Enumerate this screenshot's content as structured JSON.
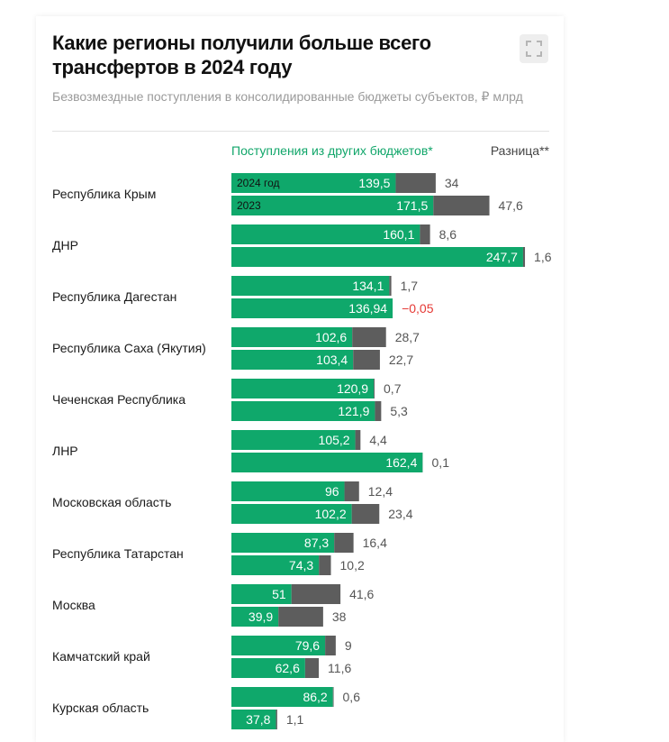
{
  "title": "Какие регионы получили больше всего трансфертов в 2024 году",
  "subtitle": "Безвозмездные поступления в консолидированные бюджеты субъектов, ₽ млрд",
  "colors": {
    "inflow": "#0fa86b",
    "diff": "#5d5d5d",
    "negative": "#e53935"
  },
  "chart_data": {
    "type": "bar",
    "orientation": "horizontal",
    "stacked": true,
    "title": "Какие регионы получили больше всего трансфертов в 2024 году",
    "subtitle": "Безвозмездные поступления в консолидированные бюджеты субъектов, ₽ млрд",
    "legend": [
      "Поступления из других бюджетов*",
      "Разница**"
    ],
    "series_names": [
      "2024 год",
      "2023"
    ],
    "categories": [
      "Республика Крым",
      "ДНР",
      "Республика Дагестан",
      "Республика Саха (Якутия)",
      "Чеченская Республика",
      "ЛНР",
      "Московская область",
      "Республика Татарстан",
      "Москва",
      "Камчатский край",
      "Курская область"
    ],
    "rows": [
      {
        "region": "Республика Крым",
        "bars": [
          {
            "year": "2024 год",
            "value": 139.5,
            "value_label": "139,5",
            "diff": 34,
            "diff_label": "34"
          },
          {
            "year": "2023",
            "value": 171.5,
            "value_label": "171,5",
            "diff": 47.6,
            "diff_label": "47,6"
          }
        ]
      },
      {
        "region": "ДНР",
        "bars": [
          {
            "year": "2024 год",
            "value": 160.1,
            "value_label": "160,1",
            "diff": 8.6,
            "diff_label": "8,6"
          },
          {
            "year": "2023",
            "value": 247.7,
            "value_label": "247,7",
            "diff": 1.6,
            "diff_label": "1,6"
          }
        ]
      },
      {
        "region": "Республика Дагестан",
        "bars": [
          {
            "year": "2024 год",
            "value": 134.1,
            "value_label": "134,1",
            "diff": 1.7,
            "diff_label": "1,7"
          },
          {
            "year": "2023",
            "value": 136.94,
            "value_label": "136,94",
            "diff": -0.05,
            "diff_label": "−0,05"
          }
        ]
      },
      {
        "region": "Республика Саха (Якутия)",
        "bars": [
          {
            "year": "2024 год",
            "value": 102.6,
            "value_label": "102,6",
            "diff": 28.7,
            "diff_label": "28,7"
          },
          {
            "year": "2023",
            "value": 103.4,
            "value_label": "103,4",
            "diff": 22.7,
            "diff_label": "22,7"
          }
        ]
      },
      {
        "region": "Чеченская Республика",
        "bars": [
          {
            "year": "2024 год",
            "value": 120.9,
            "value_label": "120,9",
            "diff": 0.7,
            "diff_label": "0,7"
          },
          {
            "year": "2023",
            "value": 121.9,
            "value_label": "121,9",
            "diff": 5.3,
            "diff_label": "5,3"
          }
        ]
      },
      {
        "region": "ЛНР",
        "bars": [
          {
            "year": "2024 год",
            "value": 105.2,
            "value_label": "105,2",
            "diff": 4.4,
            "diff_label": "4,4"
          },
          {
            "year": "2023",
            "value": 162.4,
            "value_label": "162,4",
            "diff": 0.1,
            "diff_label": "0,1"
          }
        ]
      },
      {
        "region": "Московская область",
        "bars": [
          {
            "year": "2024 год",
            "value": 96,
            "value_label": "96",
            "diff": 12.4,
            "diff_label": "12,4"
          },
          {
            "year": "2023",
            "value": 102.2,
            "value_label": "102,2",
            "diff": 23.4,
            "diff_label": "23,4"
          }
        ]
      },
      {
        "region": "Республика Татарстан",
        "bars": [
          {
            "year": "2024 год",
            "value": 87.3,
            "value_label": "87,3",
            "diff": 16.4,
            "diff_label": "16,4"
          },
          {
            "year": "2023",
            "value": 74.3,
            "value_label": "74,3",
            "diff": 10.2,
            "diff_label": "10,2"
          }
        ]
      },
      {
        "region": "Москва",
        "bars": [
          {
            "year": "2024 год",
            "value": 51,
            "value_label": "51",
            "diff": 41.6,
            "diff_label": "41,6"
          },
          {
            "year": "2023",
            "value": 39.9,
            "value_label": "39,9",
            "diff": 38,
            "diff_label": "38"
          }
        ]
      },
      {
        "region": "Камчатский край",
        "bars": [
          {
            "year": "2024 год",
            "value": 79.6,
            "value_label": "79,6",
            "diff": 9,
            "diff_label": "9"
          },
          {
            "year": "2023",
            "value": 62.6,
            "value_label": "62,6",
            "diff": 11.6,
            "diff_label": "11,6"
          }
        ]
      },
      {
        "region": "Курская область",
        "bars": [
          {
            "year": "2024 год",
            "value": 86.2,
            "value_label": "86,2",
            "diff": 0.6,
            "diff_label": "0,6"
          },
          {
            "year": "2023",
            "value": 37.8,
            "value_label": "37,8",
            "diff": 1.1,
            "diff_label": "1,1"
          }
        ]
      }
    ],
    "xlim": [
      0,
      250
    ],
    "grid": false
  }
}
